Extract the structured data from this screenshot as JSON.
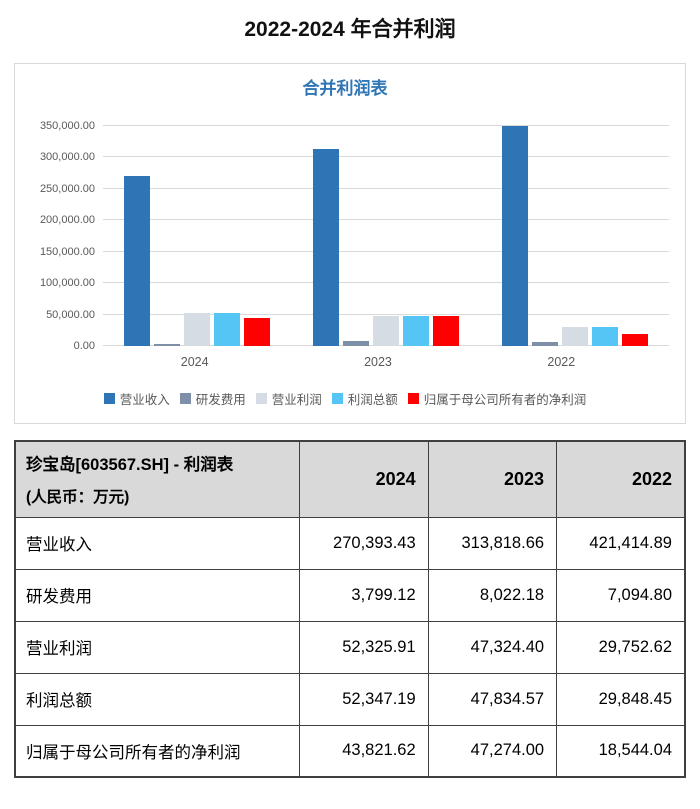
{
  "page_title": "2022-2024 年合并利润",
  "chart_data": {
    "type": "bar",
    "title": "合并利润表",
    "categories": [
      "2024",
      "2023",
      "2022"
    ],
    "series": [
      {
        "name": "营业收入",
        "color": "#2e75b6",
        "values": [
          270393.43,
          313818.66,
          421414.89
        ]
      },
      {
        "name": "研发费用",
        "color": "#7e90a8",
        "values": [
          3799.12,
          8022.18,
          7094.8
        ]
      },
      {
        "name": "营业利润",
        "color": "#d6dce4",
        "values": [
          52325.91,
          47324.4,
          29752.62
        ]
      },
      {
        "name": "利润总额",
        "color": "#54c5f5",
        "values": [
          52347.19,
          47834.57,
          29848.45
        ]
      },
      {
        "name": "归属于母公司所有者的净利润",
        "color": "#ff0000",
        "values": [
          43821.62,
          47274.0,
          18544.04
        ]
      }
    ],
    "xlabel": "",
    "ylabel": "",
    "ylim": [
      0,
      350000
    ],
    "ytick_step": 50000,
    "ytick_labels": [
      "0.00",
      "50,000.00",
      "100,000.00",
      "150,000.00",
      "200,000.00",
      "250,000.00",
      "300,000.00",
      "350,000.00"
    ],
    "grid": true,
    "legend_position": "bottom",
    "bars_clipped_at_ymax": true
  },
  "table": {
    "title_line1": "珍宝岛[603567.SH] - 利润表",
    "title_line2": "(人民币：万元)",
    "year_columns": [
      "2024",
      "2023",
      "2022"
    ],
    "rows": [
      {
        "label": "营业收入",
        "values": [
          "270,393.43",
          "313,818.66",
          "421,414.89"
        ]
      },
      {
        "label": "研发费用",
        "values": [
          "3,799.12",
          "8,022.18",
          "7,094.80"
        ]
      },
      {
        "label": "营业利润",
        "values": [
          "52,325.91",
          "47,324.40",
          "29,752.62"
        ]
      },
      {
        "label": "利润总额",
        "values": [
          "52,347.19",
          "47,834.57",
          "29,848.45"
        ]
      },
      {
        "label": "归属于母公司所有者的净利润",
        "values": [
          "43,821.62",
          "47,274.00",
          "18,544.04"
        ]
      }
    ]
  },
  "colors": {
    "chart_title": "#2e75b6",
    "axis_text": "#595959",
    "gridline": "#d9d9d9",
    "card_border": "#d9d9d9",
    "table_border": "#404040",
    "table_header_bg": "#d9d9d9"
  }
}
